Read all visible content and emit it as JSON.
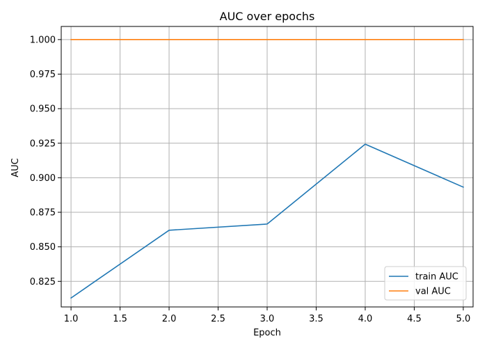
{
  "chart_data": {
    "type": "line",
    "title": "AUC over epochs",
    "xlabel": "Epoch",
    "ylabel": "AUC",
    "xlim": [
      0.9,
      5.1
    ],
    "ylim": [
      0.8065,
      1.0095
    ],
    "xticks": [
      1.0,
      1.5,
      2.0,
      2.5,
      3.0,
      3.5,
      4.0,
      4.5,
      5.0
    ],
    "xtick_labels": [
      "1.0",
      "1.5",
      "2.0",
      "2.5",
      "3.0",
      "3.5",
      "4.0",
      "4.5",
      "5.0"
    ],
    "yticks": [
      0.825,
      0.85,
      0.875,
      0.9,
      0.925,
      0.95,
      0.975,
      1.0
    ],
    "ytick_labels": [
      "0.825",
      "0.850",
      "0.875",
      "0.900",
      "0.925",
      "0.950",
      "0.975",
      "1.000"
    ],
    "grid": true,
    "legend_position": "bottom-right",
    "x": [
      1,
      2,
      3,
      4,
      5
    ],
    "series": [
      {
        "name": "train AUC",
        "color": "#1f77b4",
        "values": [
          0.813,
          0.862,
          0.8665,
          0.9243,
          0.8932
        ]
      },
      {
        "name": "val AUC",
        "color": "#ff7f0e",
        "values": [
          1.0,
          1.0,
          1.0,
          1.0,
          1.0
        ]
      }
    ]
  }
}
